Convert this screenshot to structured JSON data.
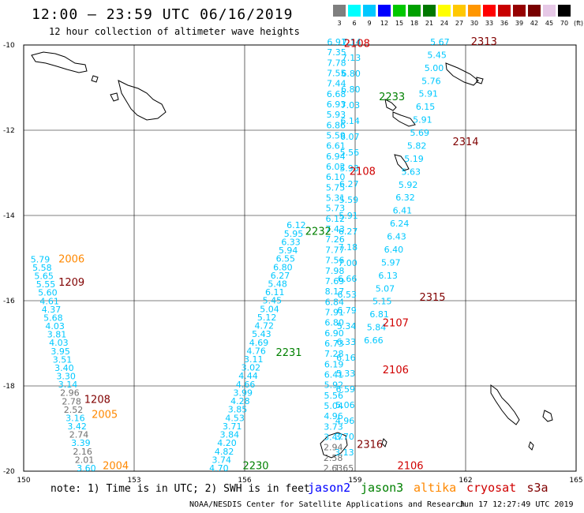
{
  "header": {
    "title": "12:00 – 23:59 UTC 06/16/2019",
    "subtitle": "12 hour collection of altimeter wave heights"
  },
  "legend": {
    "unit": "(ft)",
    "swatches": [
      {
        "label": "3",
        "color": "#7f7f7f"
      },
      {
        "label": "6",
        "color": "#00ffff"
      },
      {
        "label": "9",
        "color": "#00c8ff"
      },
      {
        "label": "12",
        "color": "#0000ff"
      },
      {
        "label": "15",
        "color": "#00c800"
      },
      {
        "label": "18",
        "color": "#00a000"
      },
      {
        "label": "21",
        "color": "#007800"
      },
      {
        "label": "24",
        "color": "#ffff00"
      },
      {
        "label": "27",
        "color": "#ffc800"
      },
      {
        "label": "30",
        "color": "#ff9600"
      },
      {
        "label": "33",
        "color": "#ff0000"
      },
      {
        "label": "36",
        "color": "#c80000"
      },
      {
        "label": "39",
        "color": "#960000"
      },
      {
        "label": "42",
        "color": "#780000"
      },
      {
        "label": "45",
        "color": "#e6c8e6"
      },
      {
        "label": "70",
        "color": "#000000"
      }
    ]
  },
  "axes": {
    "lon_ticks": [
      "150",
      "153",
      "156",
      "159",
      "162",
      "165"
    ],
    "lat_ticks": [
      "-10",
      "-12",
      "-14",
      "-16",
      "-18",
      "-20"
    ]
  },
  "tracks": [
    {
      "id": "t_left",
      "color": "#00c8ff",
      "lon0": 150.45,
      "lat0": -15.1,
      "lon1": 151.7,
      "lat1": -20.0,
      "values": [
        "5.79",
        "5.58",
        "5.65",
        "5.55",
        "5.60",
        "4.61",
        "4.37",
        "5.68",
        "4.03",
        "3.81",
        "4.03",
        "3.95",
        "3.51",
        "3.40",
        "3.30",
        "3.14",
        "2.96",
        "2.78",
        "2.52",
        "3.16",
        "3.42",
        "2.74",
        "3.39",
        "2.16",
        "2.01",
        "3.60"
      ]
    },
    {
      "id": "t_2230",
      "color": "#00c8ff",
      "lon0": 157.4,
      "lat0": -14.3,
      "lon1": 155.3,
      "lat1": -20.0,
      "values": [
        "6.12",
        "5.95",
        "6.33",
        "5.94",
        "6.55",
        "6.80",
        "6.27",
        "5.48",
        "6.11",
        "5.45",
        "5.04",
        "5.12",
        "4.72",
        "5.43",
        "4.69",
        "4.76",
        "3.11",
        "3.02",
        "4.44",
        "4.66",
        "3.99",
        "4.28",
        "3.85",
        "4.53",
        "3.71",
        "3.84",
        "4.20",
        "4.82",
        "3.74",
        "4.70"
      ]
    },
    {
      "id": "t_2232",
      "color": "#00c8ff",
      "lon0": 158.5,
      "lat0": -10.0,
      "lon1": 158.4,
      "lat1": -20.0,
      "values": [
        "6.91",
        "7.35",
        "7.78",
        "7.55",
        "7.44",
        "6.68",
        "6.93",
        "5.93",
        "6.86",
        "5.59",
        "6.61",
        "6.94",
        "6.02",
        "6.10",
        "5.75",
        "5.31",
        "5.73",
        "6.12",
        "7.43",
        "7.26",
        "7.77",
        "7.56",
        "7.98",
        "7.69",
        "8.17",
        "6.84",
        "7.91",
        "6.80",
        "6.90",
        "6.73",
        "7.28",
        "6.19",
        "6.41",
        "5.92",
        "5.56",
        "5.04",
        "4.96",
        "3.73",
        "3.47",
        "2.94",
        "2.58",
        "2.63"
      ]
    },
    {
      "id": "t_2106",
      "color": "#00c8ff",
      "lon0": 158.9,
      "lat0": -10.0,
      "lon1": 158.7,
      "lat1": -20.0,
      "values": [
        "7.14",
        "7.13",
        "6.80",
        "6.80",
        "7.03",
        "6.14",
        "6.07",
        "5.56",
        "5.93",
        "6.27",
        "5.59",
        "5.91",
        "6.27",
        "7.18",
        "7.00",
        "6.66",
        "6.53",
        "6.79",
        "5.34",
        "6.33",
        "6.16",
        "5.33",
        "6.59",
        "5.06",
        "4.96",
        "3.70",
        "3.13",
        "1.65"
      ]
    },
    {
      "id": "t_2233",
      "color": "#00c8ff",
      "lon0": 161.3,
      "lat0": -10.0,
      "lon1": 159.5,
      "lat1": -17.0,
      "values": [
        "5.67",
        "5.45",
        "5.00",
        "5.76",
        "5.91",
        "6.15",
        "5.91",
        "5.69",
        "5.82",
        "5.19",
        "5.63",
        "5.92",
        "6.32",
        "6.41",
        "6.24",
        "6.43",
        "6.40",
        "5.97",
        "6.13",
        "5.07",
        "5.15",
        "6.81",
        "5.84",
        "6.66"
      ]
    }
  ],
  "track_labels": [
    {
      "text": "2108",
      "color": "#d00000",
      "lon": 159.05,
      "lat": -10.05
    },
    {
      "text": "2313",
      "color": "#800000",
      "lon": 162.5,
      "lat": -10.0
    },
    {
      "text": "2233",
      "color": "#008000",
      "lon": 160.0,
      "lat": -11.3
    },
    {
      "text": "2314",
      "color": "#800000",
      "lon": 162.0,
      "lat": -12.35
    },
    {
      "text": "2108",
      "color": "#d00000",
      "lon": 159.2,
      "lat": -13.05
    },
    {
      "text": "2232",
      "color": "#008000",
      "lon": 158.0,
      "lat": -14.45
    },
    {
      "text": "2006",
      "color": "#ff8800",
      "lon": 151.3,
      "lat": -15.1
    },
    {
      "text": "1209",
      "color": "#800000",
      "lon": 151.3,
      "lat": -15.65
    },
    {
      "text": "2315",
      "color": "#800000",
      "lon": 161.1,
      "lat": -16.0
    },
    {
      "text": "2107",
      "color": "#d00000",
      "lon": 160.1,
      "lat": -16.6
    },
    {
      "text": "2231",
      "color": "#008000",
      "lon": 157.2,
      "lat": -17.3
    },
    {
      "text": "2106",
      "color": "#d00000",
      "lon": 160.1,
      "lat": -17.7
    },
    {
      "text": "1208",
      "color": "#800000",
      "lon": 152.0,
      "lat": -18.4
    },
    {
      "text": "2005",
      "color": "#ff8800",
      "lon": 152.2,
      "lat": -18.75
    },
    {
      "text": "2316",
      "color": "#800000",
      "lon": 159.4,
      "lat": -19.45
    },
    {
      "text": "2004",
      "color": "#ff8800",
      "lon": 152.5,
      "lat": -19.95
    },
    {
      "text": "2230",
      "color": "#008000",
      "lon": 156.3,
      "lat": -19.95
    },
    {
      "text": "2106",
      "color": "#d00000",
      "lon": 160.5,
      "lat": -19.95
    }
  ],
  "footer": {
    "note": "note: 1) Time is in UTC; 2) SWH is in feet",
    "satellites": [
      {
        "name": "jason2",
        "color": "#0000ff"
      },
      {
        "name": "jason3",
        "color": "#008000"
      },
      {
        "name": "altika",
        "color": "#ff8800"
      },
      {
        "name": "cryosat",
        "color": "#d00000"
      },
      {
        "name": "s3a",
        "color": "#800000"
      }
    ],
    "credit": "NOAA/NESDIS Center for Satellite Applications and Research",
    "timestamp": "Jun 17 12:27:49 UTC 2019"
  }
}
